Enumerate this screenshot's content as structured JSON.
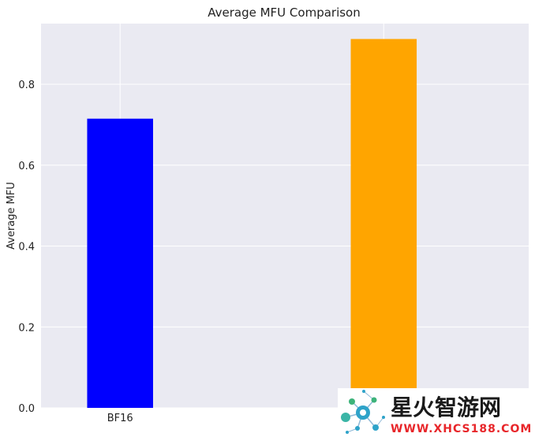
{
  "chart_data": {
    "type": "bar",
    "title": "Average MFU Comparison",
    "xlabel": "",
    "ylabel": "Average MFU",
    "categories": [
      "BF16",
      ""
    ],
    "values": [
      0.715,
      0.912
    ],
    "colors": [
      "#0000ff",
      "#ffa500"
    ],
    "ylim": [
      0,
      0.95
    ],
    "yticks": [
      0.0,
      0.2,
      0.4,
      0.6,
      0.8
    ],
    "grid": true,
    "background": "#eaeaf2",
    "legend": "none"
  },
  "watermark": {
    "title": "星火智游网",
    "url": "WWW.XHCS188.COM",
    "title_color": "#1a1a1a",
    "url_color": "#e8262a"
  }
}
